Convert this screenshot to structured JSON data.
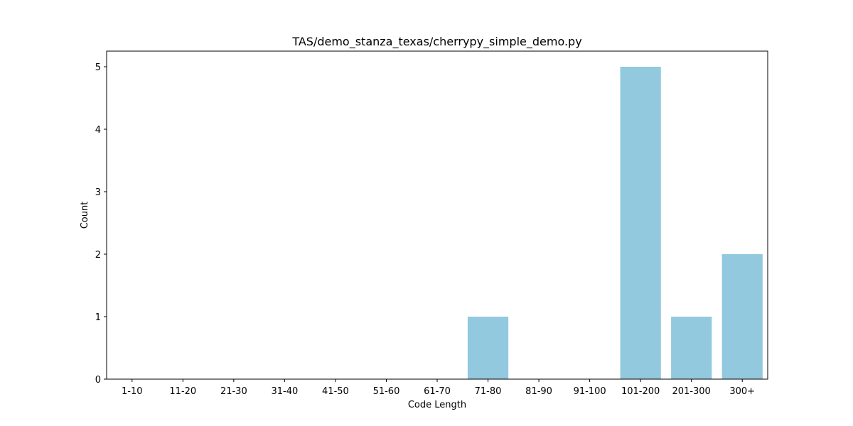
{
  "chart_data": {
    "type": "bar",
    "title": "TAS/demo_stanza_texas/cherrypy_simple_demo.py",
    "xlabel": "Code Length",
    "ylabel": "Count",
    "categories": [
      "1-10",
      "11-20",
      "21-30",
      "31-40",
      "41-50",
      "51-60",
      "61-70",
      "71-80",
      "81-90",
      "91-100",
      "101-200",
      "201-300",
      "300+"
    ],
    "values": [
      0,
      0,
      0,
      0,
      0,
      0,
      0,
      1,
      0,
      0,
      5,
      1,
      2
    ],
    "ylim": [
      0,
      5.25
    ],
    "yticks": [
      0,
      1,
      2,
      3,
      4,
      5
    ],
    "grid": false,
    "legend": "none",
    "bar_color": "#92c9df"
  }
}
